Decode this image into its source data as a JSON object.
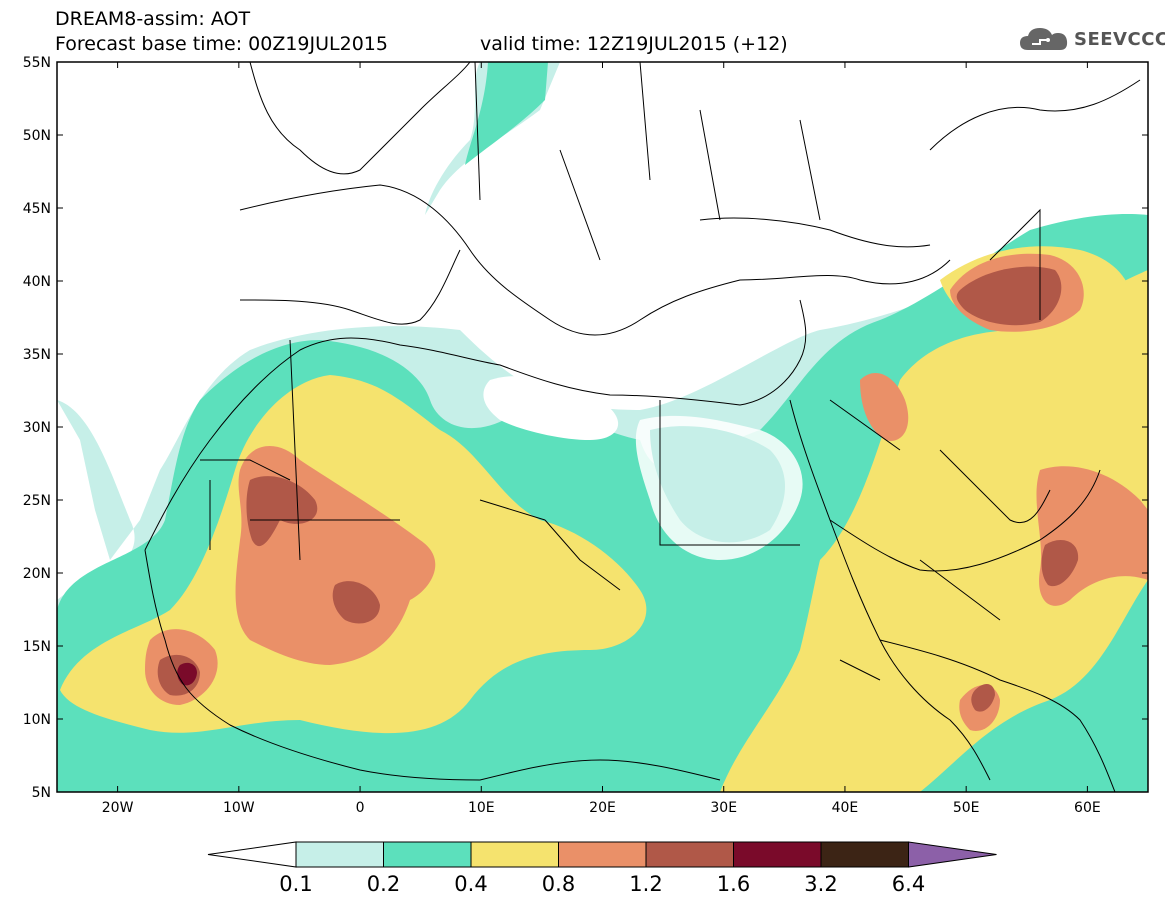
{
  "header": {
    "model_label": "DREAM8-assim: AOT",
    "base_time": "Forecast base time: 00Z19JUL2015",
    "valid_time": "valid time: 12Z19JUL2015 (+12)",
    "logo_text": "SEEVCCC",
    "logo_icon": "cloud-icon"
  },
  "map": {
    "lon_range": [
      -25,
      65
    ],
    "lat_range": [
      5,
      55
    ],
    "lat_labels": [
      "55N",
      "50N",
      "45N",
      "40N",
      "35N",
      "30N",
      "25N",
      "20N",
      "15N",
      "10N",
      "5N"
    ],
    "lat_values": [
      55,
      50,
      45,
      40,
      35,
      30,
      25,
      20,
      15,
      10,
      5
    ],
    "lon_labels": [
      "20W",
      "10W",
      "0",
      "10E",
      "20E",
      "30E",
      "40E",
      "50E",
      "60E"
    ],
    "lon_values": [
      -20,
      -10,
      0,
      10,
      20,
      30,
      40,
      50,
      60
    ]
  },
  "colorbar": {
    "levels": [
      "0.1",
      "0.2",
      "0.4",
      "0.8",
      "1.2",
      "1.6",
      "3.2",
      "6.4"
    ],
    "colors": [
      "#c6efe8",
      "#5ce0bc",
      "#f5e36e",
      "#ea9068",
      "#b05848",
      "#7a0a2a",
      "#3c2415"
    ],
    "under_color": "#ffffff",
    "over_color": "#8c60a8"
  },
  "colors": {
    "c1": "#c6efe8",
    "c2": "#5ce0bc",
    "c3": "#f5e36e",
    "c4": "#ea9068",
    "c5": "#b05848",
    "c6": "#7a0a2a"
  }
}
